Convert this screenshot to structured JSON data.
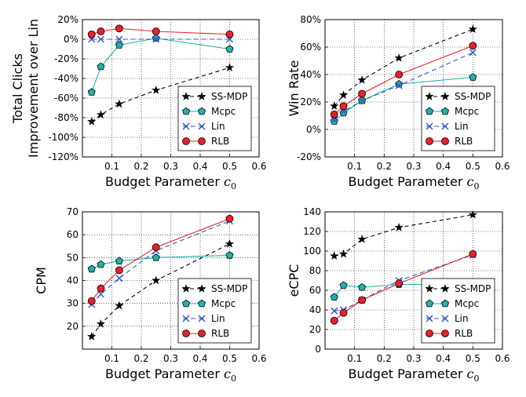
{
  "chart_data": [
    {
      "type": "line",
      "title": "",
      "xlabel": "Budget Parameter c",
      "xlabel_sub": "0",
      "ylabel_lines": [
        "Total Clicks",
        "Improvement over Lin"
      ],
      "xlim": [
        0,
        0.6
      ],
      "ylim": [
        -120,
        20
      ],
      "xticks": [
        0.1,
        0.2,
        0.3,
        0.4,
        0.5,
        0.6
      ],
      "xtick_labels": [
        "0.1",
        "0.2",
        "0.3",
        "0.4",
        "0.5",
        "0.6"
      ],
      "yticks": [
        -120,
        -100,
        -80,
        -60,
        -40,
        -20,
        0,
        20
      ],
      "ytick_labels": [
        "-120%",
        "-100%",
        "-80%",
        "-60%",
        "-40%",
        "-20%",
        "0%",
        "20%"
      ],
      "grid": true,
      "legend_position": "bottom-right",
      "series": [
        {
          "name": "SS-MDP",
          "x": [
            0.03125,
            0.0625,
            0.125,
            0.25,
            0.5
          ],
          "y": [
            -84,
            -77,
            -66,
            -52,
            -29
          ]
        },
        {
          "name": "Mcpc",
          "x": [
            0.03125,
            0.0625,
            0.125,
            0.25,
            0.5
          ],
          "y": [
            -54,
            -28,
            -6,
            1,
            -10
          ]
        },
        {
          "name": "Lin",
          "x": [
            0.03125,
            0.0625,
            0.125,
            0.25,
            0.5
          ],
          "y": [
            0,
            0,
            0,
            0,
            0
          ]
        },
        {
          "name": "RLB",
          "x": [
            0.03125,
            0.0625,
            0.125,
            0.25,
            0.5
          ],
          "y": [
            5,
            8,
            11,
            8,
            5
          ]
        }
      ]
    },
    {
      "type": "line",
      "title": "",
      "xlabel": "Budget Parameter c",
      "xlabel_sub": "0",
      "ylabel_lines": [
        "Win Rate"
      ],
      "xlim": [
        0,
        0.6
      ],
      "ylim": [
        -20,
        80
      ],
      "xticks": [
        0.1,
        0.2,
        0.3,
        0.4,
        0.5,
        0.6
      ],
      "xtick_labels": [
        "0.1",
        "0.2",
        "0.3",
        "0.4",
        "0.5",
        "0.6"
      ],
      "yticks": [
        -20,
        0,
        20,
        40,
        60,
        80
      ],
      "ytick_labels": [
        "-20%",
        "0%",
        "20%",
        "40%",
        "60%",
        "80%"
      ],
      "grid": true,
      "legend_position": "bottom-right",
      "series": [
        {
          "name": "SS-MDP",
          "x": [
            0.03125,
            0.0625,
            0.125,
            0.25,
            0.5
          ],
          "y": [
            17,
            25,
            36,
            52,
            73
          ]
        },
        {
          "name": "Mcpc",
          "x": [
            0.03125,
            0.0625,
            0.125,
            0.25,
            0.5
          ],
          "y": [
            6,
            12,
            21,
            33,
            38
          ]
        },
        {
          "name": "Lin",
          "x": [
            0.03125,
            0.0625,
            0.125,
            0.25,
            0.5
          ],
          "y": [
            7,
            13,
            21,
            32,
            56
          ]
        },
        {
          "name": "RLB",
          "x": [
            0.03125,
            0.0625,
            0.125,
            0.25,
            0.5
          ],
          "y": [
            11,
            17,
            26,
            40,
            61
          ]
        }
      ]
    },
    {
      "type": "line",
      "title": "",
      "xlabel": "Budget Parameter c",
      "xlabel_sub": "0",
      "ylabel_lines": [
        "CPM"
      ],
      "xlim": [
        0,
        0.6
      ],
      "ylim": [
        10,
        70
      ],
      "xticks": [
        0.1,
        0.2,
        0.3,
        0.4,
        0.5,
        0.6
      ],
      "xtick_labels": [
        "0.1",
        "0.2",
        "0.3",
        "0.4",
        "0.5",
        "0.6"
      ],
      "yticks": [
        20,
        30,
        40,
        50,
        60,
        70
      ],
      "ytick_labels": [
        "20",
        "30",
        "40",
        "50",
        "60",
        "70"
      ],
      "grid": true,
      "legend_position": "bottom-right",
      "series": [
        {
          "name": "SS-MDP",
          "x": [
            0.03125,
            0.0625,
            0.125,
            0.25,
            0.5
          ],
          "y": [
            15.5,
            21,
            29,
            40,
            56
          ]
        },
        {
          "name": "Mcpc",
          "x": [
            0.03125,
            0.0625,
            0.125,
            0.25,
            0.5
          ],
          "y": [
            45,
            47,
            48.5,
            50,
            51
          ]
        },
        {
          "name": "Lin",
          "x": [
            0.03125,
            0.0625,
            0.125,
            0.25,
            0.5
          ],
          "y": [
            29.5,
            34,
            41,
            53,
            66
          ]
        },
        {
          "name": "RLB",
          "x": [
            0.03125,
            0.0625,
            0.125,
            0.25,
            0.5
          ],
          "y": [
            31,
            36.5,
            44.5,
            54.5,
            67
          ]
        }
      ]
    },
    {
      "type": "line",
      "title": "",
      "xlabel": "Budget Parameter c",
      "xlabel_sub": "0",
      "ylabel_lines": [
        "eCPC"
      ],
      "xlim": [
        0,
        0.6
      ],
      "ylim": [
        0,
        140
      ],
      "xticks": [
        0.1,
        0.2,
        0.3,
        0.4,
        0.5,
        0.6
      ],
      "xtick_labels": [
        "0.1",
        "0.2",
        "0.3",
        "0.4",
        "0.5",
        "0.6"
      ],
      "yticks": [
        0,
        20,
        40,
        60,
        80,
        100,
        120,
        140
      ],
      "ytick_labels": [
        "0",
        "20",
        "40",
        "60",
        "80",
        "100",
        "120",
        "140"
      ],
      "grid": true,
      "legend_position": "bottom-right",
      "series": [
        {
          "name": "SS-MDP",
          "x": [
            0.03125,
            0.0625,
            0.125,
            0.25,
            0.5
          ],
          "y": [
            95,
            97,
            112,
            124,
            137
          ]
        },
        {
          "name": "Mcpc",
          "x": [
            0.03125,
            0.0625,
            0.125,
            0.25,
            0.5
          ],
          "y": [
            53,
            65,
            63,
            66,
            66
          ]
        },
        {
          "name": "Lin",
          "x": [
            0.03125,
            0.0625,
            0.125,
            0.25,
            0.5
          ],
          "y": [
            39,
            40,
            50,
            70,
            96
          ]
        },
        {
          "name": "RLB",
          "x": [
            0.03125,
            0.0625,
            0.125,
            0.25,
            0.5
          ],
          "y": [
            29,
            37,
            50,
            67,
            97
          ]
        }
      ]
    }
  ],
  "series_style": {
    "SS-MDP": {
      "color": "#000000",
      "dash": "5,4",
      "marker": "star"
    },
    "Mcpc": {
      "color": "#20b2aa",
      "dash": "",
      "marker": "pentagon"
    },
    "Lin": {
      "color": "#3355cc",
      "dash": "6,4",
      "marker": "x"
    },
    "RLB": {
      "color": "#e8202a",
      "dash": "",
      "marker": "circle"
    }
  }
}
